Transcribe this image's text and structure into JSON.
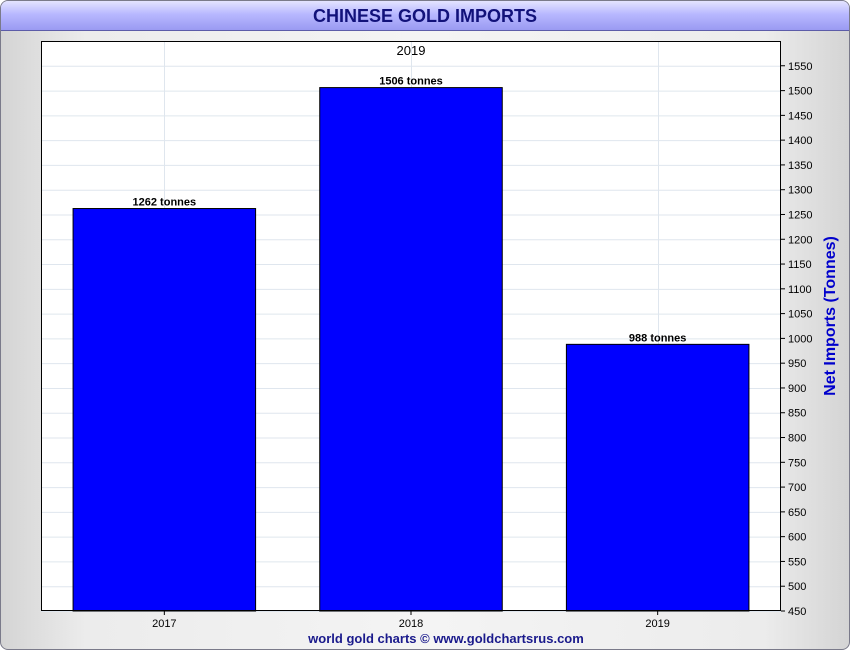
{
  "header": {
    "title": "CHINESE GOLD IMPORTS"
  },
  "footer": {
    "credit": "world gold charts © www.goldchartsrus.com"
  },
  "chart_data": {
    "type": "bar",
    "title": "CHINESE GOLD IMPORTS",
    "subtitle": "2019",
    "categories": [
      "2017",
      "2018",
      "2019"
    ],
    "values": [
      1262,
      1506,
      988
    ],
    "data_labels": [
      "1262 tonnes",
      "1506 tonnes",
      "988 tonnes"
    ],
    "xlabel": "",
    "ylabel": "Net Imports (Tonnes)",
    "y_axis_side": "right",
    "ylim": [
      450,
      1600
    ],
    "yticks": [
      450,
      500,
      550,
      600,
      650,
      700,
      750,
      800,
      850,
      900,
      950,
      1000,
      1050,
      1100,
      1150,
      1200,
      1250,
      1300,
      1350,
      1400,
      1450,
      1500,
      1550
    ],
    "grid": true,
    "bar_color": "#0000ff",
    "title_color": "#12127a",
    "ylabel_color": "#0000cc"
  }
}
